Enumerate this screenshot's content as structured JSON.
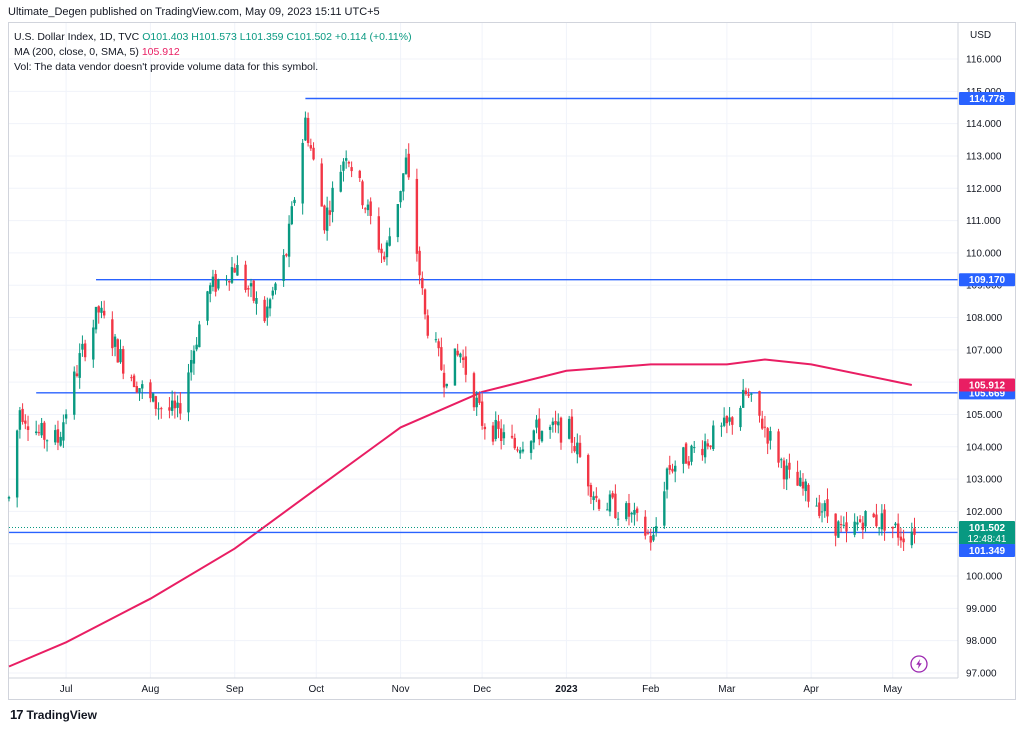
{
  "header": {
    "published": "Ultimate_Degen published on TradingView.com, May 09, 2023 15:11 UTC+5"
  },
  "legend": {
    "symbol_line": "U.S. Dollar Index, 1D, TVC",
    "open": "O101.403",
    "high": "H101.573",
    "low": "L101.359",
    "close": "C101.502",
    "change": "+0.114 (+0.11%)",
    "ma_label": "MA (200, close, 0, SMA, 5)",
    "ma_value": "105.912",
    "vol_note": "Vol: The data vendor doesn't provide volume data for this symbol."
  },
  "footer": {
    "brand": "TradingView",
    "logo_mark": "17"
  },
  "colors": {
    "up": "#089981",
    "down": "#f23645",
    "hline": "#2962ff",
    "ma": "#e91e63",
    "grid": "#f0f3fa"
  },
  "chart_data": {
    "type": "candlestick",
    "currency": "USD",
    "ylim": [
      97.0,
      116.0
    ],
    "ytick_labels": [
      "116.000",
      "115.000",
      "114.000",
      "113.000",
      "112.000",
      "111.000",
      "110.000",
      "109.000",
      "108.000",
      "107.000",
      "106.000",
      "105.000",
      "104.000",
      "103.000",
      "102.000",
      "101.000",
      "100.000",
      "99.000",
      "98.000",
      "97.000"
    ],
    "x_tick_labels": [
      {
        "label": "Jul",
        "date": "2022-07-01"
      },
      {
        "label": "Aug",
        "date": "2022-08-01"
      },
      {
        "label": "Sep",
        "date": "2022-09-01"
      },
      {
        "label": "Oct",
        "date": "2022-10-01"
      },
      {
        "label": "Nov",
        "date": "2022-11-01"
      },
      {
        "label": "Dec",
        "date": "2022-12-01"
      },
      {
        "label": "2023",
        "date": "2023-01-01"
      },
      {
        "label": "Feb",
        "date": "2023-02-01"
      },
      {
        "label": "Mar",
        "date": "2023-03-01"
      },
      {
        "label": "Apr",
        "date": "2023-04-01"
      },
      {
        "label": "May",
        "date": "2023-05-01"
      }
    ],
    "x_range": [
      "2022-06-10",
      "2023-05-25"
    ],
    "horizontal_lines": [
      {
        "value": 114.778,
        "label": "114.778",
        "from": "2022-09-27"
      },
      {
        "value": 109.17,
        "label": "109.170",
        "from": "2022-07-12"
      },
      {
        "value": 105.669,
        "label": "105.669",
        "from": "2022-06-20"
      },
      {
        "value": 101.349,
        "label": "101.349",
        "from": "2022-06-10"
      }
    ],
    "last_price": {
      "value": 101.502,
      "label": "101.502",
      "countdown": "12:48:41"
    },
    "ma_last": {
      "value": 105.912,
      "label": "105.912"
    },
    "ma_200": [
      {
        "date": "2022-06-10",
        "value": 97.2
      },
      {
        "date": "2022-07-01",
        "value": 97.95
      },
      {
        "date": "2022-08-01",
        "value": 99.3
      },
      {
        "date": "2022-09-01",
        "value": 100.85
      },
      {
        "date": "2022-10-01",
        "value": 102.7
      },
      {
        "date": "2022-11-01",
        "value": 104.6
      },
      {
        "date": "2022-12-01",
        "value": 105.7
      },
      {
        "date": "2023-01-01",
        "value": 106.35
      },
      {
        "date": "2023-02-01",
        "value": 106.55
      },
      {
        "date": "2023-03-01",
        "value": 106.55
      },
      {
        "date": "2023-03-15",
        "value": 106.7
      },
      {
        "date": "2023-04-01",
        "value": 106.55
      },
      {
        "date": "2023-05-08",
        "value": 105.912
      }
    ],
    "price_path": [
      {
        "date": "2022-06-10",
        "value": 102.4
      },
      {
        "date": "2022-06-14",
        "value": 105.2
      },
      {
        "date": "2022-06-21",
        "value": 104.4
      },
      {
        "date": "2022-06-28",
        "value": 104.2
      },
      {
        "date": "2022-07-06",
        "value": 106.7
      },
      {
        "date": "2022-07-13",
        "value": 108.2
      },
      {
        "date": "2022-07-22",
        "value": 106.6
      },
      {
        "date": "2022-08-01",
        "value": 105.4
      },
      {
        "date": "2022-08-11",
        "value": 105.0
      },
      {
        "date": "2022-08-22",
        "value": 108.8
      },
      {
        "date": "2022-09-01",
        "value": 109.6
      },
      {
        "date": "2022-09-12",
        "value": 108.0
      },
      {
        "date": "2022-09-20",
        "value": 110.0
      },
      {
        "date": "2022-09-27",
        "value": 114.1
      },
      {
        "date": "2022-10-04",
        "value": 111.0
      },
      {
        "date": "2022-10-12",
        "value": 113.2
      },
      {
        "date": "2022-10-26",
        "value": 109.8
      },
      {
        "date": "2022-11-03",
        "value": 112.8
      },
      {
        "date": "2022-11-10",
        "value": 108.0
      },
      {
        "date": "2022-11-17",
        "value": 106.2
      },
      {
        "date": "2022-11-23",
        "value": 106.9
      },
      {
        "date": "2022-12-01",
        "value": 104.8
      },
      {
        "date": "2022-12-13",
        "value": 104.0
      },
      {
        "date": "2022-12-20",
        "value": 104.5
      },
      {
        "date": "2023-01-02",
        "value": 104.5
      },
      {
        "date": "2023-01-12",
        "value": 102.4
      },
      {
        "date": "2023-01-24",
        "value": 101.9
      },
      {
        "date": "2023-02-02",
        "value": 101.1
      },
      {
        "date": "2023-02-07",
        "value": 103.3
      },
      {
        "date": "2023-02-22",
        "value": 104.2
      },
      {
        "date": "2023-03-01",
        "value": 104.6
      },
      {
        "date": "2023-03-08",
        "value": 105.6
      },
      {
        "date": "2023-03-15",
        "value": 104.6
      },
      {
        "date": "2023-03-24",
        "value": 103.0
      },
      {
        "date": "2023-04-03",
        "value": 102.3
      },
      {
        "date": "2023-04-14",
        "value": 101.2
      },
      {
        "date": "2023-04-20",
        "value": 101.8
      },
      {
        "date": "2023-04-28",
        "value": 101.7
      },
      {
        "date": "2023-05-04",
        "value": 101.3
      },
      {
        "date": "2023-05-09",
        "value": 101.502
      }
    ]
  }
}
